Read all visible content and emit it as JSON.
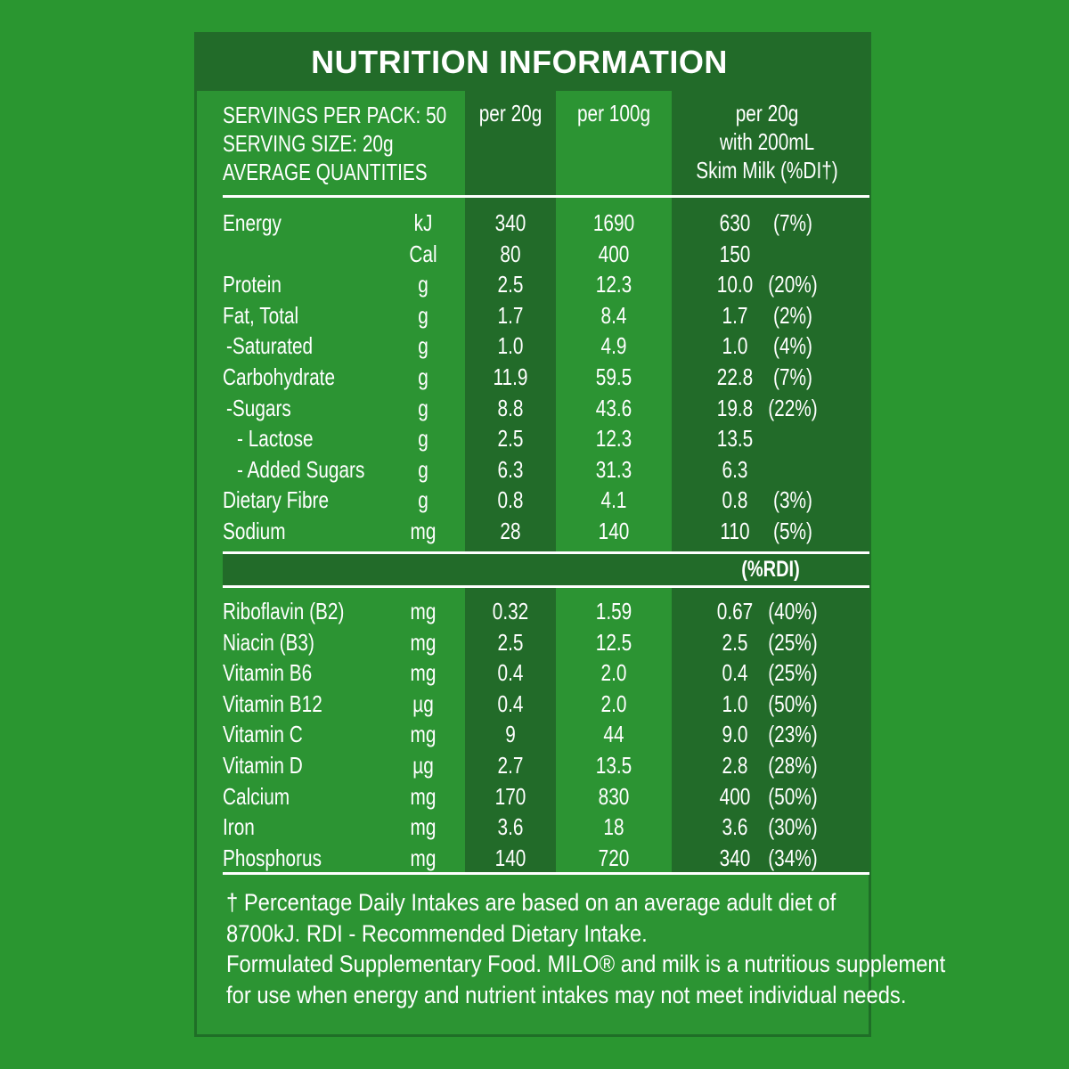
{
  "title": "NUTRITION INFORMATION",
  "header": {
    "servings_per_pack": "SERVINGS PER PACK: 50",
    "serving_size": "SERVING SIZE: 20g",
    "average_quantities": "AVERAGE QUANTITIES",
    "col_per_serve": "per 20g",
    "col_per_100": "per 100g",
    "col_milk_line1": "per 20g",
    "col_milk_line2": "with 200mL",
    "col_milk_line3": "Skim Milk (%DI†)"
  },
  "nutrients": [
    {
      "name": "Energy",
      "unit": "kJ",
      "per_serve": "340",
      "per_100": "1690",
      "with_milk": "630",
      "pct": "(7%)"
    },
    {
      "name": "",
      "unit": "Cal",
      "per_serve": "80",
      "per_100": "400",
      "with_milk": "150",
      "pct": ""
    },
    {
      "name": "Protein",
      "unit": "g",
      "per_serve": "2.5",
      "per_100": "12.3",
      "with_milk": "10.0",
      "pct": "(20%)"
    },
    {
      "name": "Fat, Total",
      "unit": "g",
      "per_serve": "1.7",
      "per_100": "8.4",
      "with_milk": "1.7",
      "pct": "(2%)"
    },
    {
      "name": "-Saturated",
      "unit": "g",
      "per_serve": "1.0",
      "per_100": "4.9",
      "with_milk": "1.0",
      "pct": "(4%)"
    },
    {
      "name": "Carbohydrate",
      "unit": "g",
      "per_serve": "11.9",
      "per_100": "59.5",
      "with_milk": "22.8",
      "pct": "(7%)"
    },
    {
      "name": "-Sugars",
      "unit": "g",
      "per_serve": "8.8",
      "per_100": "43.6",
      "with_milk": "19.8",
      "pct": "(22%)"
    },
    {
      "name": "- Lactose",
      "unit": "g",
      "per_serve": "2.5",
      "per_100": "12.3",
      "with_milk": "13.5",
      "pct": ""
    },
    {
      "name": "- Added Sugars",
      "unit": "g",
      "per_serve": "6.3",
      "per_100": "31.3",
      "with_milk": "6.3",
      "pct": ""
    },
    {
      "name": "Dietary Fibre",
      "unit": "g",
      "per_serve": "0.8",
      "per_100": "4.1",
      "with_milk": "0.8",
      "pct": "(3%)"
    },
    {
      "name": "Sodium",
      "unit": "mg",
      "per_serve": "28",
      "per_100": "140",
      "with_milk": "110",
      "pct": "(5%)"
    }
  ],
  "rdi_label": "(%RDI)",
  "vitamins": [
    {
      "name": "Riboflavin (B2)",
      "unit": "mg",
      "per_serve": "0.32",
      "per_100": "1.59",
      "with_milk": "0.67",
      "pct": "(40%)"
    },
    {
      "name": "Niacin (B3)",
      "unit": "mg",
      "per_serve": "2.5",
      "per_100": "12.5",
      "with_milk": "2.5",
      "pct": "(25%)"
    },
    {
      "name": "Vitamin B6",
      "unit": "mg",
      "per_serve": "0.4",
      "per_100": "2.0",
      "with_milk": "0.4",
      "pct": "(25%)"
    },
    {
      "name": "Vitamin B12",
      "unit": "µg",
      "per_serve": "0.4",
      "per_100": "2.0",
      "with_milk": "1.0",
      "pct": "(50%)"
    },
    {
      "name": "Vitamin C",
      "unit": "mg",
      "per_serve": "9",
      "per_100": "44",
      "with_milk": "9.0",
      "pct": "(23%)"
    },
    {
      "name": "Vitamin D",
      "unit": "µg",
      "per_serve": "2.7",
      "per_100": "13.5",
      "with_milk": "2.8",
      "pct": "(28%)"
    },
    {
      "name": "Calcium",
      "unit": "mg",
      "per_serve": "170",
      "per_100": "830",
      "with_milk": "400",
      "pct": "(50%)"
    },
    {
      "name": "Iron",
      "unit": "mg",
      "per_serve": "3.6",
      "per_100": "18",
      "with_milk": "3.6",
      "pct": "(30%)"
    },
    {
      "name": "Phosphorus",
      "unit": "mg",
      "per_serve": "140",
      "per_100": "720",
      "with_milk": "340",
      "pct": "(34%)"
    }
  ],
  "footnote": {
    "line1": "† Percentage Daily Intakes are based on an average adult diet of",
    "line2": "8700kJ. RDI - Recommended Dietary Intake.",
    "line3": "Formulated Supplementary Food. MILO® and milk is a nutritious supplement",
    "line4": "for use when energy and nutrient intakes may not meet individual needs."
  }
}
